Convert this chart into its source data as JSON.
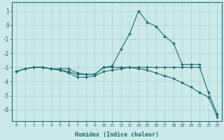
{
  "xlabel": "Humidex (Indice chaleur)",
  "bg_color": "#cce9e9",
  "grid_color": "#b8d8d8",
  "line_color": "#1a6e6e",
  "xlim": [
    -0.5,
    23.5
  ],
  "ylim": [
    -6.8,
    1.6
  ],
  "yticks": [
    1,
    0,
    -1,
    -2,
    -3,
    -4,
    -5,
    -6
  ],
  "xticks": [
    0,
    1,
    2,
    3,
    4,
    5,
    6,
    7,
    8,
    9,
    10,
    11,
    12,
    13,
    14,
    15,
    16,
    17,
    18,
    19,
    20,
    21,
    22,
    23
  ],
  "series": [
    {
      "x": [
        0,
        1,
        2,
        3,
        4,
        5,
        6,
        7,
        8,
        9,
        10,
        11,
        12,
        13,
        14,
        15,
        16,
        17,
        18,
        19,
        20,
        21
      ],
      "y": [
        -3.3,
        -3.1,
        -3.0,
        -3.0,
        -3.1,
        -3.1,
        -3.1,
        -3.4,
        -3.5,
        -3.5,
        -3.0,
        -2.9,
        -1.7,
        -0.6,
        1.0,
        0.2,
        -0.1,
        -0.8,
        -1.3,
        -2.8,
        -2.8,
        -2.8
      ]
    },
    {
      "x": [
        0,
        1,
        2,
        3,
        4,
        5,
        6,
        7,
        8,
        9,
        10,
        11,
        12,
        13,
        14,
        15,
        16,
        17,
        18,
        19,
        20,
        21,
        22,
        23
      ],
      "y": [
        -3.3,
        -3.1,
        -3.0,
        -3.0,
        -3.1,
        -3.2,
        -3.3,
        -3.5,
        -3.5,
        -3.5,
        -3.0,
        -3.0,
        -3.0,
        -3.0,
        -3.0,
        -3.0,
        -3.0,
        -3.0,
        -3.0,
        -3.0,
        -3.0,
        -3.0,
        -4.8,
        -6.3
      ]
    },
    {
      "x": [
        0,
        1,
        2,
        3,
        4,
        5,
        6,
        7,
        8,
        9,
        10,
        11,
        12,
        13,
        14,
        15,
        16,
        17,
        18,
        19,
        20,
        21,
        22,
        23
      ],
      "y": [
        -3.3,
        -3.1,
        -3.0,
        -3.0,
        -3.1,
        -3.2,
        -3.4,
        -3.7,
        -3.7,
        -3.6,
        -3.3,
        -3.2,
        -3.1,
        -3.0,
        -3.1,
        -3.2,
        -3.4,
        -3.6,
        -3.8,
        -4.1,
        -4.4,
        -4.8,
        -5.1,
        -6.5
      ]
    }
  ]
}
